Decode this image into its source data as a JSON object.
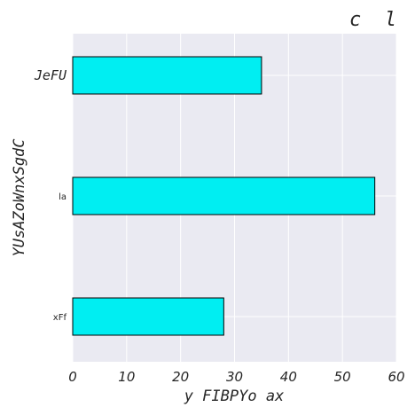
{
  "chart_data": {
    "type": "bar",
    "orientation": "horizontal",
    "title": "c  l",
    "xlabel": "y FIBPYo ax",
    "ylabel": "YUsAZoWnxSgdC",
    "categories": [
      "JeFU",
      "la",
      "xFf"
    ],
    "values": [
      35,
      56,
      28
    ],
    "xlim": [
      0,
      60
    ],
    "xticks": [
      "0",
      "10",
      "20",
      "30",
      "40",
      "50",
      "60"
    ],
    "grid": true,
    "colors": {
      "bar_fill": "#00eef2",
      "bar_edge": "#000000",
      "plot_background": "#eaeaf2",
      "grid": "#ffffff"
    }
  }
}
